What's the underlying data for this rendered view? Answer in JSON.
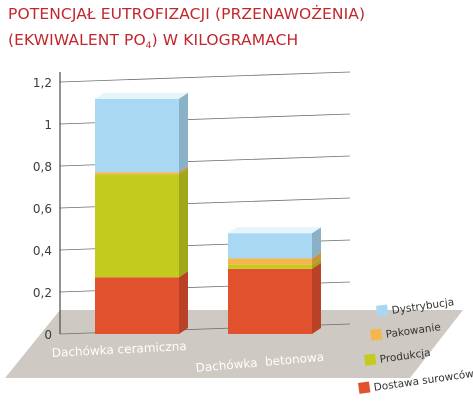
{
  "title_line1": "POTENCJAŁ EUTROFIZACJI (PRZENAWOŻENIA)",
  "title_line2_before": "(EKWIWALENT PO",
  "title_line2_sub": "4",
  "title_line2_after": ") W KILOGRAMACH",
  "colors": {
    "title": "#c1272d",
    "dystrybucja": "#a9d8f2",
    "pakowanie": "#f6b64c",
    "produkcja": "#c3cc1e",
    "dostawa": "#e2512e",
    "floor": "#cfc9c4",
    "axis": "#4b4b4b"
  },
  "chart_data": {
    "type": "bar",
    "stacked": true,
    "categories": [
      "Dachówka ceramiczna",
      "Dachówka  betonowa"
    ],
    "series": [
      {
        "name": "Dostawa surowców",
        "values": [
          0.27,
          0.31
        ]
      },
      {
        "name": "Produkcja",
        "values": [
          0.49,
          0.02
        ]
      },
      {
        "name": "Pakowanie",
        "values": [
          0.01,
          0.03
        ]
      },
      {
        "name": "Dystrybucja",
        "values": [
          0.35,
          0.12
        ]
      }
    ],
    "yticks": [
      "0",
      "0,2",
      "0,4",
      "0,6",
      "0,8",
      "1",
      "1,2"
    ],
    "ylim": [
      0,
      1.2
    ],
    "legend": [
      "Dystrybucja",
      "Pakowanie",
      "Produkcja",
      "Dostawa surowców"
    ],
    "legend_position": "bottom-right"
  }
}
